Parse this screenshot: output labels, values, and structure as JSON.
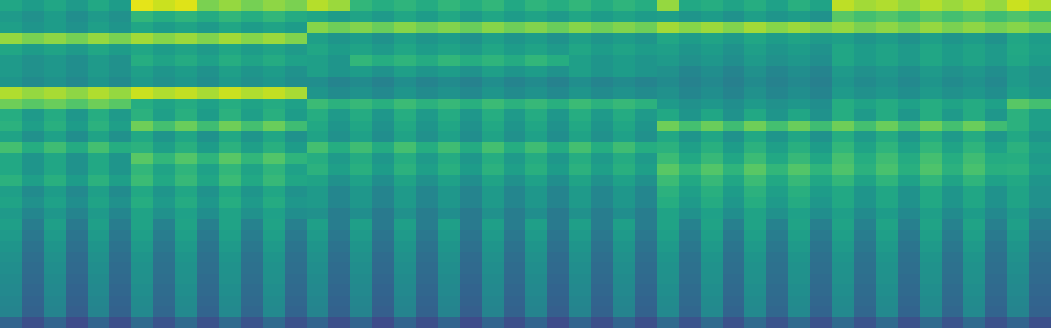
{
  "chart_data": {
    "type": "heatmap",
    "color": "viridis",
    "tick_labels": false,
    "zlim": [
      0,
      100
    ],
    "cells": [
      [
        59,
        55,
        59,
        54,
        60,
        55,
        96,
        92,
        95,
        80,
        84,
        79,
        83,
        80,
        89,
        85,
        66,
        62,
        65,
        61,
        66,
        62,
        66,
        60,
        65,
        62,
        66,
        61,
        65,
        62,
        84,
        60,
        62,
        58,
        62,
        57,
        63,
        58,
        90,
        86,
        88,
        84,
        89,
        85,
        88,
        84,
        92,
        88
      ],
      [
        54,
        50,
        55,
        49,
        54,
        50,
        66,
        62,
        65,
        61,
        66,
        62,
        66,
        61,
        59,
        55,
        58,
        54,
        59,
        55,
        60,
        54,
        59,
        55,
        58,
        54,
        59,
        55,
        58,
        55,
        56,
        52,
        55,
        51,
        56,
        52,
        55,
        51,
        74,
        70,
        73,
        69,
        74,
        70,
        73,
        69,
        72,
        68
      ],
      [
        56,
        52,
        55,
        51,
        56,
        52,
        59,
        55,
        58,
        54,
        59,
        55,
        58,
        55,
        82,
        78,
        81,
        77,
        82,
        78,
        81,
        77,
        82,
        78,
        81,
        77,
        82,
        78,
        81,
        78,
        86,
        82,
        85,
        81,
        86,
        82,
        85,
        81,
        84,
        80,
        83,
        79,
        84,
        80,
        83,
        79,
        82,
        78
      ],
      [
        84,
        80,
        83,
        79,
        84,
        80,
        86,
        82,
        85,
        81,
        86,
        82,
        85,
        81,
        56,
        52,
        55,
        51,
        56,
        52,
        55,
        51,
        56,
        52,
        55,
        51,
        56,
        52,
        55,
        52,
        59,
        55,
        58,
        54,
        59,
        55,
        58,
        54,
        56,
        52,
        55,
        51,
        56,
        52,
        55,
        51,
        59,
        55
      ],
      [
        59,
        55,
        58,
        54,
        59,
        55,
        59,
        55,
        58,
        54,
        59,
        55,
        58,
        54,
        59,
        55,
        58,
        54,
        59,
        55,
        58,
        54,
        59,
        55,
        58,
        54,
        59,
        55,
        58,
        55,
        56,
        52,
        55,
        51,
        56,
        52,
        55,
        51,
        59,
        55,
        58,
        54,
        59,
        55,
        58,
        54,
        60,
        56
      ],
      [
        54,
        50,
        53,
        49,
        54,
        50,
        62,
        58,
        61,
        57,
        62,
        58,
        61,
        57,
        56,
        52,
        66,
        62,
        65,
        61,
        66,
        62,
        65,
        61,
        66,
        62,
        56,
        52,
        55,
        52,
        54,
        50,
        53,
        49,
        54,
        50,
        53,
        49,
        59,
        55,
        58,
        54,
        59,
        55,
        58,
        54,
        59,
        55
      ],
      [
        54,
        50,
        53,
        49,
        54,
        50,
        56,
        52,
        55,
        51,
        56,
        52,
        55,
        51,
        56,
        52,
        55,
        51,
        56,
        52,
        55,
        51,
        56,
        52,
        55,
        51,
        56,
        52,
        55,
        52,
        50,
        46,
        49,
        45,
        50,
        46,
        49,
        45,
        54,
        50,
        53,
        49,
        54,
        50,
        53,
        49,
        54,
        50
      ],
      [
        52,
        48,
        51,
        47,
        52,
        48,
        54,
        50,
        53,
        49,
        54,
        50,
        53,
        49,
        49,
        45,
        48,
        44,
        49,
        45,
        48,
        44,
        49,
        45,
        48,
        44,
        49,
        45,
        48,
        45,
        48,
        44,
        47,
        43,
        48,
        44,
        47,
        43,
        52,
        48,
        51,
        47,
        52,
        48,
        51,
        47,
        54,
        50
      ],
      [
        88,
        84,
        87,
        83,
        88,
        84,
        92,
        88,
        91,
        87,
        92,
        88,
        91,
        87,
        52,
        48,
        51,
        47,
        52,
        48,
        51,
        47,
        52,
        48,
        51,
        47,
        52,
        48,
        51,
        48,
        50,
        46,
        49,
        45,
        50,
        46,
        49,
        45,
        54,
        50,
        53,
        49,
        54,
        50,
        53,
        49,
        56,
        52
      ],
      [
        78,
        74,
        77,
        73,
        78,
        74,
        62,
        58,
        61,
        57,
        62,
        58,
        61,
        57,
        68,
        64,
        67,
        63,
        68,
        64,
        67,
        63,
        68,
        64,
        67,
        63,
        68,
        64,
        67,
        64,
        54,
        50,
        53,
        49,
        54,
        50,
        53,
        49,
        62,
        58,
        61,
        57,
        62,
        58,
        61,
        57,
        74,
        70
      ],
      [
        62,
        54,
        61,
        53,
        62,
        54,
        64,
        56,
        63,
        55,
        64,
        56,
        63,
        55,
        62,
        54,
        61,
        53,
        62,
        54,
        61,
        53,
        62,
        54,
        61,
        53,
        62,
        54,
        61,
        54,
        60,
        52,
        59,
        51,
        60,
        52,
        59,
        51,
        62,
        54,
        61,
        53,
        62,
        54,
        61,
        53,
        64,
        56
      ],
      [
        64,
        56,
        63,
        55,
        64,
        56,
        78,
        70,
        77,
        69,
        78,
        70,
        77,
        69,
        60,
        52,
        59,
        51,
        60,
        52,
        59,
        51,
        60,
        52,
        59,
        51,
        60,
        52,
        59,
        52,
        78,
        70,
        77,
        69,
        78,
        70,
        77,
        69,
        78,
        70,
        77,
        69,
        78,
        70,
        77,
        69,
        64,
        56
      ],
      [
        58,
        50,
        57,
        49,
        58,
        50,
        60,
        52,
        59,
        51,
        60,
        52,
        59,
        51,
        58,
        50,
        57,
        49,
        58,
        50,
        57,
        49,
        58,
        50,
        57,
        49,
        58,
        50,
        57,
        50,
        60,
        52,
        59,
        51,
        60,
        52,
        59,
        51,
        62,
        54,
        61,
        53,
        62,
        54,
        61,
        53,
        60,
        52
      ],
      [
        70,
        62,
        69,
        61,
        70,
        62,
        64,
        56,
        63,
        55,
        64,
        56,
        63,
        55,
        70,
        62,
        69,
        61,
        70,
        62,
        69,
        61,
        70,
        62,
        69,
        61,
        70,
        62,
        69,
        62,
        64,
        56,
        63,
        55,
        64,
        56,
        63,
        55,
        66,
        58,
        65,
        57,
        66,
        58,
        65,
        57,
        64,
        56
      ],
      [
        60,
        52,
        59,
        51,
        60,
        52,
        74,
        66,
        73,
        65,
        74,
        66,
        73,
        65,
        62,
        54,
        61,
        53,
        62,
        54,
        61,
        53,
        62,
        54,
        61,
        53,
        62,
        54,
        61,
        54,
        68,
        60,
        67,
        59,
        68,
        60,
        67,
        59,
        70,
        62,
        69,
        61,
        70,
        62,
        69,
        61,
        62,
        54
      ],
      [
        60,
        52,
        59,
        51,
        60,
        52,
        66,
        58,
        65,
        57,
        66,
        58,
        65,
        57,
        64,
        56,
        63,
        55,
        64,
        56,
        63,
        55,
        64,
        56,
        63,
        55,
        64,
        56,
        63,
        56,
        74,
        66,
        73,
        65,
        74,
        66,
        73,
        65,
        72,
        64,
        71,
        63,
        72,
        64,
        71,
        63,
        64,
        56
      ],
      [
        64,
        56,
        63,
        55,
        64,
        56,
        68,
        60,
        67,
        59,
        68,
        60,
        67,
        59,
        58,
        50,
        57,
        49,
        58,
        50,
        57,
        49,
        58,
        50,
        57,
        49,
        58,
        50,
        57,
        50,
        68,
        60,
        67,
        59,
        68,
        60,
        67,
        59,
        66,
        58,
        65,
        57,
        66,
        58,
        65,
        57,
        60,
        52
      ],
      [
        56,
        48,
        55,
        47,
        56,
        48,
        60,
        52,
        59,
        51,
        60,
        52,
        59,
        51,
        54,
        46,
        53,
        45,
        54,
        46,
        53,
        45,
        54,
        46,
        53,
        45,
        54,
        46,
        53,
        46,
        64,
        56,
        63,
        55,
        64,
        56,
        63,
        55,
        60,
        52,
        59,
        51,
        60,
        52,
        59,
        51,
        58,
        50
      ],
      [
        58,
        50,
        57,
        49,
        58,
        50,
        62,
        54,
        61,
        53,
        62,
        54,
        61,
        53,
        54,
        46,
        53,
        45,
        54,
        46,
        53,
        45,
        54,
        46,
        53,
        45,
        54,
        46,
        53,
        46,
        62,
        54,
        61,
        53,
        62,
        54,
        61,
        53,
        60,
        52,
        59,
        51,
        60,
        52,
        59,
        51,
        58,
        50
      ],
      [
        54,
        46,
        53,
        45,
        54,
        46,
        58,
        50,
        57,
        49,
        58,
        50,
        57,
        49,
        50,
        42,
        49,
        41,
        50,
        42,
        49,
        41,
        50,
        42,
        49,
        41,
        50,
        42,
        49,
        42,
        58,
        50,
        57,
        49,
        58,
        50,
        57,
        49,
        56,
        48,
        55,
        47,
        56,
        48,
        55,
        47,
        54,
        46
      ],
      [
        56,
        42,
        56,
        41,
        56,
        42,
        58,
        44,
        58,
        43,
        58,
        44,
        58,
        43,
        56,
        42,
        56,
        41,
        56,
        42,
        56,
        41,
        56,
        42,
        56,
        41,
        56,
        42,
        56,
        42,
        58,
        44,
        58,
        43,
        58,
        44,
        58,
        43,
        58,
        44,
        58,
        43,
        58,
        44,
        58,
        43,
        56,
        42
      ],
      [
        54,
        40,
        54,
        39,
        54,
        40,
        56,
        42,
        56,
        41,
        56,
        42,
        56,
        41,
        54,
        40,
        54,
        39,
        54,
        40,
        54,
        39,
        54,
        40,
        54,
        39,
        54,
        40,
        54,
        40,
        56,
        42,
        56,
        41,
        56,
        42,
        56,
        41,
        56,
        42,
        56,
        41,
        56,
        42,
        56,
        41,
        54,
        40
      ],
      [
        52,
        38,
        52,
        37,
        52,
        38,
        54,
        40,
        54,
        39,
        54,
        40,
        54,
        39,
        52,
        38,
        52,
        37,
        52,
        38,
        52,
        37,
        52,
        38,
        52,
        37,
        52,
        38,
        52,
        38,
        54,
        40,
        54,
        39,
        54,
        40,
        54,
        39,
        54,
        40,
        54,
        39,
        54,
        40,
        54,
        39,
        52,
        38
      ],
      [
        50,
        36,
        50,
        35,
        50,
        36,
        52,
        38,
        52,
        37,
        52,
        38,
        52,
        37,
        50,
        36,
        50,
        35,
        50,
        36,
        50,
        35,
        50,
        36,
        50,
        35,
        50,
        36,
        50,
        36,
        52,
        38,
        52,
        37,
        52,
        38,
        52,
        37,
        52,
        38,
        52,
        37,
        52,
        38,
        52,
        37,
        50,
        36
      ],
      [
        49,
        35,
        49,
        34,
        49,
        35,
        51,
        37,
        51,
        36,
        51,
        37,
        51,
        36,
        49,
        35,
        49,
        34,
        49,
        35,
        49,
        34,
        49,
        35,
        49,
        34,
        49,
        35,
        49,
        35,
        51,
        37,
        51,
        36,
        51,
        37,
        51,
        36,
        51,
        37,
        51,
        36,
        51,
        37,
        51,
        36,
        49,
        35
      ],
      [
        48,
        34,
        48,
        33,
        48,
        34,
        50,
        36,
        50,
        35,
        50,
        36,
        50,
        35,
        48,
        34,
        48,
        33,
        48,
        34,
        48,
        33,
        48,
        34,
        48,
        33,
        48,
        34,
        48,
        34,
        50,
        36,
        50,
        35,
        50,
        36,
        50,
        35,
        50,
        36,
        50,
        35,
        50,
        36,
        50,
        35,
        48,
        34
      ],
      [
        47,
        33,
        47,
        32,
        47,
        33,
        49,
        35,
        49,
        34,
        49,
        35,
        49,
        34,
        47,
        33,
        47,
        32,
        47,
        33,
        47,
        32,
        47,
        33,
        47,
        32,
        47,
        33,
        47,
        33,
        49,
        35,
        49,
        34,
        49,
        35,
        49,
        34,
        49,
        35,
        49,
        34,
        49,
        35,
        49,
        34,
        47,
        33
      ],
      [
        46,
        32,
        46,
        31,
        46,
        32,
        48,
        34,
        48,
        33,
        48,
        34,
        48,
        33,
        46,
        32,
        46,
        31,
        46,
        32,
        46,
        31,
        46,
        32,
        46,
        31,
        46,
        32,
        46,
        32,
        48,
        34,
        48,
        33,
        48,
        34,
        48,
        33,
        48,
        34,
        48,
        33,
        48,
        34,
        48,
        33,
        46,
        32
      ],
      [
        45,
        31,
        45,
        30,
        45,
        31,
        47,
        33,
        47,
        32,
        47,
        33,
        47,
        32,
        45,
        31,
        45,
        30,
        45,
        31,
        45,
        30,
        45,
        31,
        45,
        30,
        45,
        31,
        45,
        31,
        47,
        33,
        47,
        32,
        47,
        33,
        47,
        32,
        47,
        33,
        47,
        32,
        47,
        33,
        47,
        32,
        45,
        31
      ],
      [
        32,
        24,
        32,
        23,
        32,
        24,
        34,
        26,
        34,
        25,
        34,
        26,
        34,
        25,
        32,
        24,
        32,
        23,
        32,
        24,
        32,
        23,
        32,
        24,
        32,
        23,
        32,
        24,
        32,
        24,
        34,
        26,
        34,
        25,
        34,
        26,
        34,
        25,
        34,
        26,
        34,
        25,
        34,
        26,
        34,
        25,
        32,
        24
      ]
    ]
  }
}
